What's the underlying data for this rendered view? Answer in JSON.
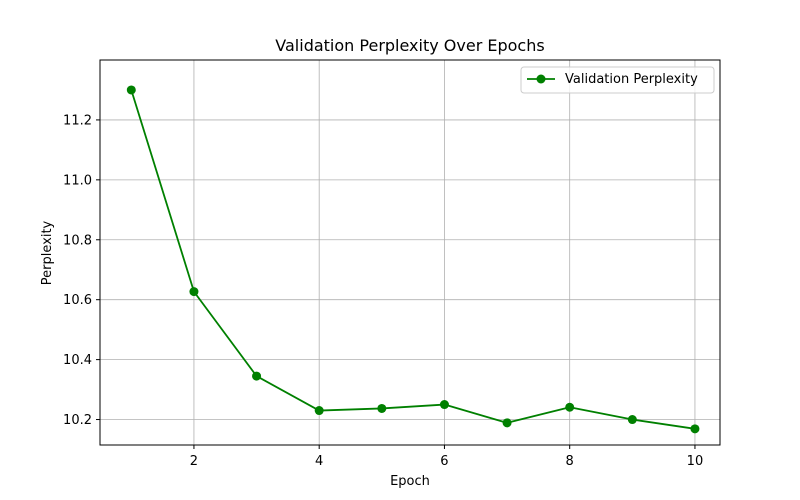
{
  "chart_data": {
    "type": "line",
    "title": "Validation Perplexity Over Epochs",
    "xlabel": "Epoch",
    "ylabel": "Perplexity",
    "xlim": [
      0.5,
      10.4
    ],
    "ylim": [
      10.115,
      11.4
    ],
    "xticks": [
      2,
      4,
      6,
      8,
      10
    ],
    "yticks": [
      10.2,
      10.4,
      10.6,
      10.8,
      11.0,
      11.2
    ],
    "ytick_labels": [
      "10.2",
      "10.4",
      "10.6",
      "10.8",
      "11.0",
      "11.2"
    ],
    "grid": true,
    "legend_position": "top-right",
    "series": [
      {
        "name": "Validation Perplexity",
        "color": "#008000",
        "marker": "circle",
        "x": [
          1,
          2,
          3,
          4,
          5,
          6,
          7,
          8,
          9,
          10
        ],
        "y": [
          11.3,
          10.627,
          10.345,
          10.23,
          10.237,
          10.25,
          10.189,
          10.241,
          10.2,
          10.169
        ]
      }
    ]
  }
}
